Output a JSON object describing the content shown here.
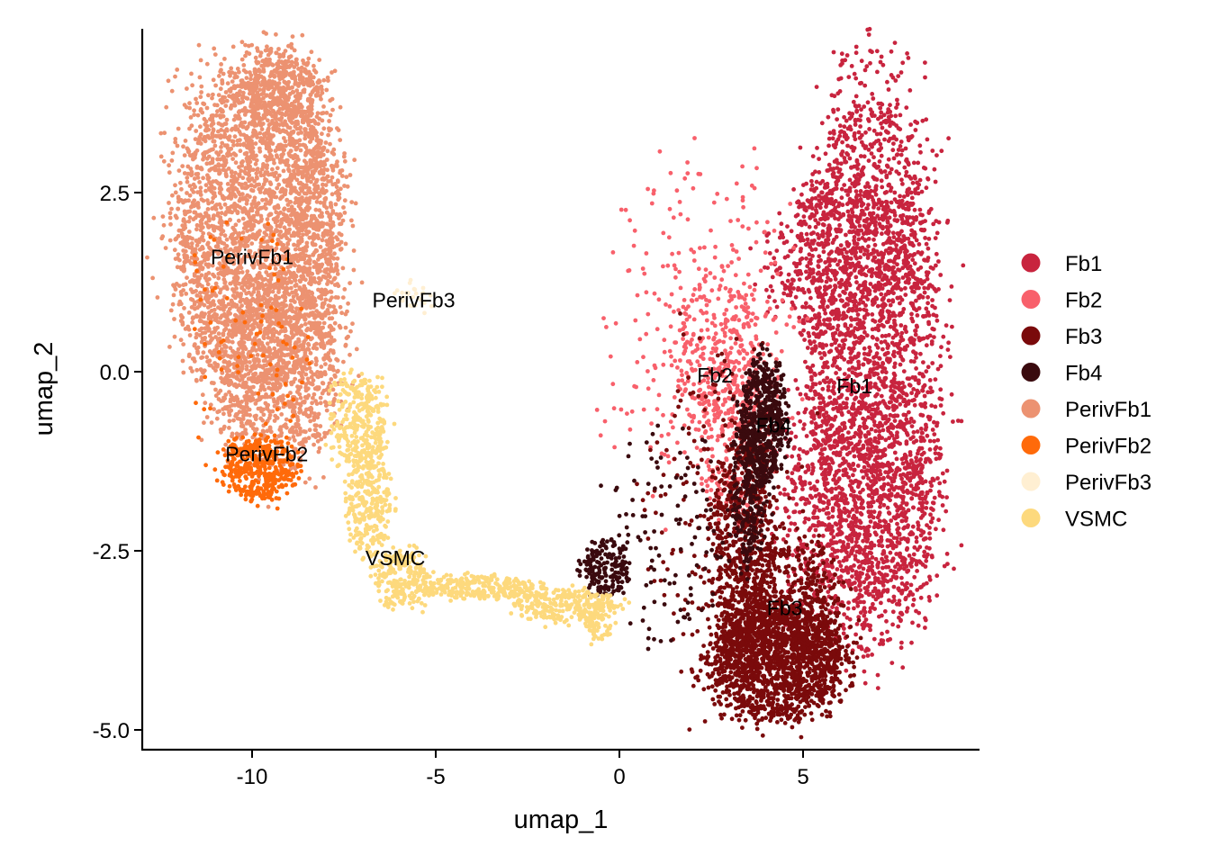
{
  "chart_data": {
    "type": "scatter",
    "xlabel": "umap_1",
    "ylabel": "umap_2",
    "xlim": [
      -13.0,
      9.8
    ],
    "ylim": [
      -5.5,
      4.75
    ],
    "x_ticks": [
      -10,
      -5,
      0,
      5
    ],
    "x_tick_labels": [
      "-10",
      "-5",
      "0",
      "5"
    ],
    "y_ticks": [
      -5.0,
      -2.5,
      0.0,
      2.5
    ],
    "y_tick_labels": [
      "-5.0",
      "-2.5",
      "0.0",
      "2.5"
    ],
    "grid": false,
    "legend_position": "right",
    "series": [
      {
        "name": "Fb1",
        "color": "#C8243E",
        "regions": [
          {
            "cx": 6.85,
            "cy": 0.3,
            "rx": 1.7,
            "ry": 3.5,
            "n": 2600
          },
          {
            "cx": 6.6,
            "cy": -1.9,
            "rx": 2.0,
            "ry": 1.6,
            "n": 700
          },
          {
            "cx": 6.0,
            "cy": 1.6,
            "rx": 1.8,
            "ry": 1.0,
            "n": 500
          }
        ]
      },
      {
        "name": "Fb2",
        "color": "#F8606B",
        "regions": [
          {
            "cx": 2.7,
            "cy": 0.2,
            "rx": 1.1,
            "ry": 1.2,
            "n": 320
          },
          {
            "cx": 2.3,
            "cy": 0.6,
            "rx": 2.4,
            "ry": 2.2,
            "n": 260
          },
          {
            "cx": 3.1,
            "cy": -0.8,
            "rx": 0.9,
            "ry": 1.2,
            "n": 180
          }
        ]
      },
      {
        "name": "Fb3",
        "color": "#7A0A0B",
        "regions": [
          {
            "cx": 4.3,
            "cy": -4.0,
            "rx": 1.7,
            "ry": 0.8,
            "n": 1500
          },
          {
            "cx": 3.4,
            "cy": -2.5,
            "rx": 0.8,
            "ry": 1.5,
            "n": 600
          },
          {
            "cx": 4.6,
            "cy": -3.3,
            "rx": 1.3,
            "ry": 0.9,
            "n": 500
          },
          {
            "cx": 2.8,
            "cy": -2.2,
            "rx": 1.8,
            "ry": 2.4,
            "n": 200
          }
        ]
      },
      {
        "name": "Fb4",
        "color": "#3A0A0E",
        "regions": [
          {
            "cx": 3.9,
            "cy": -0.7,
            "rx": 0.55,
            "ry": 0.8,
            "n": 550
          },
          {
            "cx": 3.5,
            "cy": -1.7,
            "rx": 0.45,
            "ry": 0.9,
            "n": 220
          },
          {
            "cx": -0.35,
            "cy": -2.75,
            "rx": 0.6,
            "ry": 0.35,
            "n": 180
          },
          {
            "cx": 1.4,
            "cy": -2.3,
            "rx": 1.5,
            "ry": 1.3,
            "n": 110
          }
        ]
      },
      {
        "name": "PerivFb1",
        "color": "#EC9271",
        "regions": [
          {
            "cx": -9.85,
            "cy": 1.9,
            "rx": 2.05,
            "ry": 2.2,
            "n": 3200
          },
          {
            "cx": -9.3,
            "cy": 0.0,
            "rx": 1.55,
            "ry": 1.3,
            "n": 900
          },
          {
            "cx": -9.2,
            "cy": 3.9,
            "rx": 1.0,
            "ry": 0.55,
            "n": 400
          },
          {
            "cx": -8.2,
            "cy": 2.2,
            "rx": 0.7,
            "ry": 1.3,
            "n": 200
          }
        ]
      },
      {
        "name": "PerivFb2",
        "color": "#FF6A0A",
        "regions": [
          {
            "cx": -9.8,
            "cy": -1.35,
            "rx": 0.9,
            "ry": 0.4,
            "n": 380
          },
          {
            "cx": -10.0,
            "cy": 0.2,
            "rx": 1.6,
            "ry": 1.8,
            "n": 90
          }
        ]
      },
      {
        "name": "PerivFb3",
        "color": "#FFEFD2",
        "regions": [
          {
            "cx": -5.6,
            "cy": 1.05,
            "rx": 0.45,
            "ry": 0.2,
            "n": 25
          }
        ]
      },
      {
        "name": "VSMC",
        "color": "#FDD97D",
        "regions": [
          {
            "cx": -7.1,
            "cy": -0.7,
            "rx": 0.7,
            "ry": 0.6,
            "n": 300
          },
          {
            "cx": -6.8,
            "cy": -1.8,
            "rx": 0.55,
            "ry": 0.7,
            "n": 300
          },
          {
            "cx": -5.9,
            "cy": -2.9,
            "rx": 0.7,
            "ry": 0.35,
            "n": 220
          },
          {
            "cx": -3.8,
            "cy": -3.0,
            "rx": 1.5,
            "ry": 0.15,
            "n": 260
          },
          {
            "cx": -1.5,
            "cy": -3.25,
            "rx": 1.3,
            "ry": 0.22,
            "n": 260
          },
          {
            "cx": -0.6,
            "cy": -3.5,
            "rx": 0.35,
            "ry": 0.25,
            "n": 80
          }
        ]
      }
    ],
    "cluster_labels": [
      {
        "text": "PerivFb1",
        "x": -10.0,
        "y": 1.6
      },
      {
        "text": "PerivFb3",
        "x": -5.6,
        "y": 1.0
      },
      {
        "text": "PerivFb2",
        "x": -9.6,
        "y": -1.15
      },
      {
        "text": "VSMC",
        "x": -6.1,
        "y": -2.6
      },
      {
        "text": "Fb2",
        "x": 2.6,
        "y": -0.05
      },
      {
        "text": "Fb1",
        "x": 6.4,
        "y": -0.2
      },
      {
        "text": "Fb4",
        "x": 4.2,
        "y": -0.75
      },
      {
        "text": "Fb3",
        "x": 4.5,
        "y": -3.3
      }
    ]
  }
}
